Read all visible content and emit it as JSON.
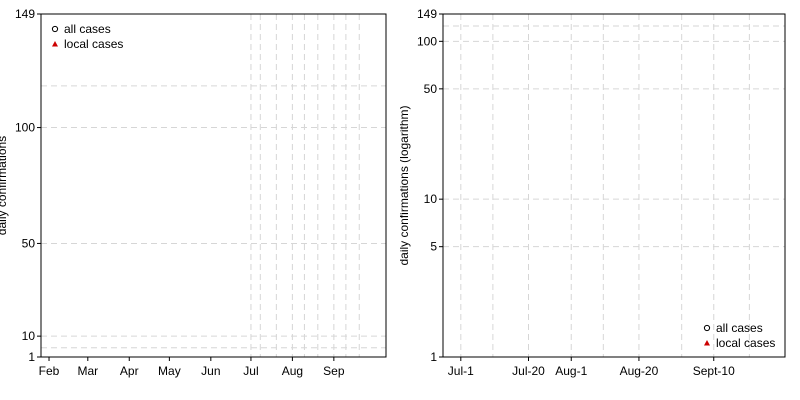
{
  "colors": {
    "local_marker": "#cc0000",
    "grid": "#d6d6d6",
    "axis": "#000000"
  },
  "chart_data": [
    {
      "type": "scatter",
      "xlabel": "",
      "ylabel": "daily confirmations",
      "ylim": [
        1,
        149
      ],
      "yscale": "linear",
      "yticks": [
        1,
        10,
        50,
        100,
        149
      ],
      "ygrid": [
        5,
        10,
        50,
        100,
        118
      ],
      "xlim": [
        "2020-01-26",
        "2020-10-10"
      ],
      "xticks": [
        {
          "label": "Feb",
          "date": "2020-02-01"
        },
        {
          "label": "Mar",
          "date": "2020-03-01"
        },
        {
          "label": "Apr",
          "date": "2020-04-01"
        },
        {
          "label": "May",
          "date": "2020-05-01"
        },
        {
          "label": "Jun",
          "date": "2020-06-01"
        },
        {
          "label": "Jul",
          "date": "2020-07-01"
        },
        {
          "label": "Aug",
          "date": "2020-08-01"
        },
        {
          "label": "Sep",
          "date": "2020-09-01"
        }
      ],
      "xgrid": [
        "2020-07-01",
        "2020-07-08",
        "2020-07-20",
        "2020-08-01",
        "2020-08-10",
        "2020-08-20",
        "2020-09-01",
        "2020-09-10",
        "2020-09-20"
      ],
      "grid": true,
      "legend_position": "top-left",
      "series": [
        {
          "name": "all cases",
          "marker": "open-circle",
          "values": []
        },
        {
          "name": "local cases",
          "marker": "filled-triangle",
          "values": []
        }
      ]
    },
    {
      "type": "scatter",
      "xlabel": "",
      "ylabel": "daily confirmations (logarithm)",
      "ylim": [
        1,
        149
      ],
      "yscale": "log",
      "yticks": [
        1,
        5,
        10,
        50,
        100,
        149
      ],
      "ygrid": [
        5,
        10,
        50,
        100,
        125
      ],
      "xlim": [
        "2020-06-26",
        "2020-09-30"
      ],
      "xticks": [
        {
          "label": "Jul-1",
          "date": "2020-07-01"
        },
        {
          "label": "Jul-20",
          "date": "2020-07-20"
        },
        {
          "label": "Aug-1",
          "date": "2020-08-01"
        },
        {
          "label": "Aug-20",
          "date": "2020-08-20"
        },
        {
          "label": "Sept-10",
          "date": "2020-09-10"
        }
      ],
      "xgrid": [
        "2020-07-01",
        "2020-07-10",
        "2020-07-20",
        "2020-08-01",
        "2020-08-10",
        "2020-08-20",
        "2020-09-01",
        "2020-09-10",
        "2020-09-20"
      ],
      "grid": true,
      "legend_position": "bottom-right",
      "series": [
        {
          "name": "all cases",
          "marker": "open-circle",
          "values": []
        },
        {
          "name": "local cases",
          "marker": "filled-triangle",
          "values": []
        }
      ]
    }
  ]
}
